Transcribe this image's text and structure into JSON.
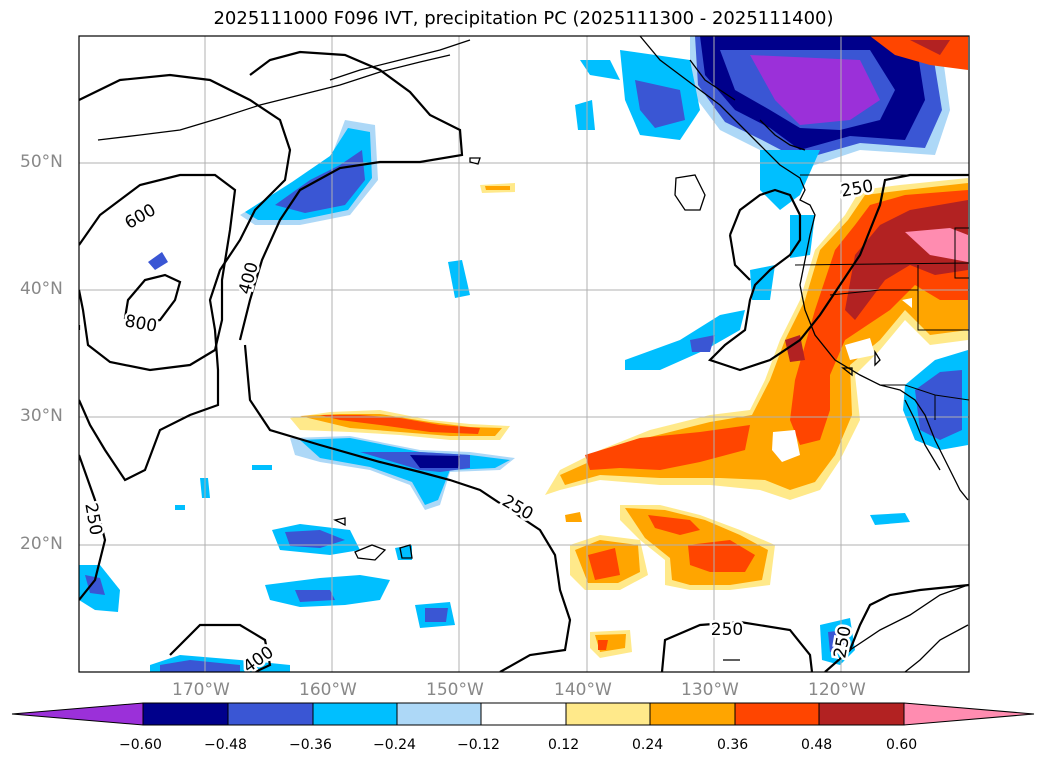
{
  "title": "2025111000 F096 IVT, precipitation PC (2025111300 - 2025111400)",
  "map": {
    "lat_labels": [
      "50°N",
      "40°N",
      "30°N",
      "20°N"
    ],
    "lon_labels": [
      "170°W",
      "160°W",
      "150°W",
      "140°W",
      "130°W",
      "120°W"
    ],
    "ivt_contour_labels": [
      "600",
      "800",
      "400",
      "250",
      "250",
      "250",
      "400",
      "250",
      "250"
    ]
  },
  "colorbar": {
    "ticks": [
      "−0.60",
      "−0.48",
      "−0.36",
      "−0.24",
      "−0.12",
      "0.12",
      "0.24",
      "0.36",
      "0.48",
      "0.60"
    ],
    "colors": [
      "#9b30d9",
      "#00008b",
      "#3a56d4",
      "#00bfff",
      "#add8f7",
      "#ffffff",
      "#ffe98a",
      "#ffa500",
      "#ff4500",
      "#b22222",
      "#ff8cb0"
    ]
  }
}
